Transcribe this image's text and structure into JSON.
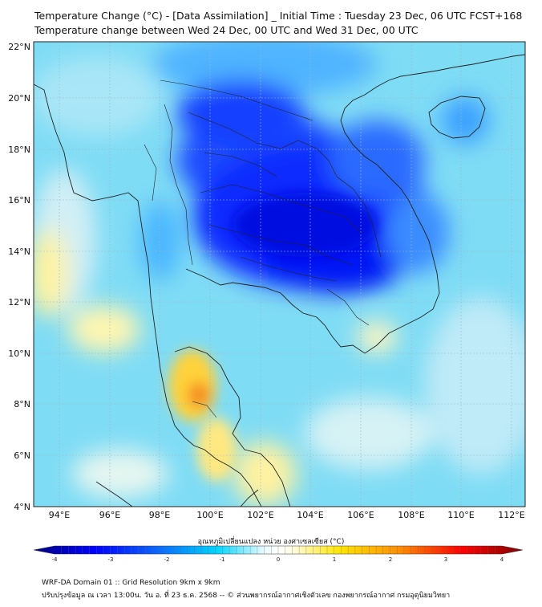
{
  "title_line1": "Temperature Change (°C) - [Data Assimilation] _ Initial Time : Tuesday 23 Dec, 06 UTC FCST+168",
  "title_line2": "Temperature change between Wed 24 Dec, 00 UTC and Wed 31 Dec, 00 UTC",
  "lat_labels": [
    "22°N",
    "20°N",
    "18°N",
    "16°N",
    "14°N",
    "12°N",
    "10°N",
    "8°N",
    "6°N",
    "4°N"
  ],
  "lon_labels": [
    "94°E",
    "96°E",
    "98°E",
    "100°E",
    "102°E",
    "104°E",
    "106°E",
    "108°E",
    "110°E",
    "112°E"
  ],
  "colorbar": {
    "title": "อุณหภูมิเปลี่ยนแปลง หน่วย องศาเซลเซียส (°C)",
    "ticks": [
      "-4",
      "-3",
      "-2",
      "-1",
      "0",
      "1",
      "2",
      "3",
      "4"
    ],
    "range": [
      -4,
      4
    ],
    "colors": [
      "#00007f",
      "#0000ff",
      "#007fff",
      "#00d5ff",
      "#ffffff",
      "#ffe600",
      "#ff8c00",
      "#ff0000",
      "#7f0000"
    ]
  },
  "footer_line1": "WRF-DA Domain 01 :: Grid Resolution 9km x 9km",
  "footer_line2": "ปรับปรุงข้อมูล ณ เวลา 13:00น. วัน อ. ที่ 23 ธ.ค. 2568 -- © ส่วนพยากรณ์อากาศเชิงตัวเลข กองพยากรณ์อากาศ กรมอุตุนิยมวิทยา"
}
